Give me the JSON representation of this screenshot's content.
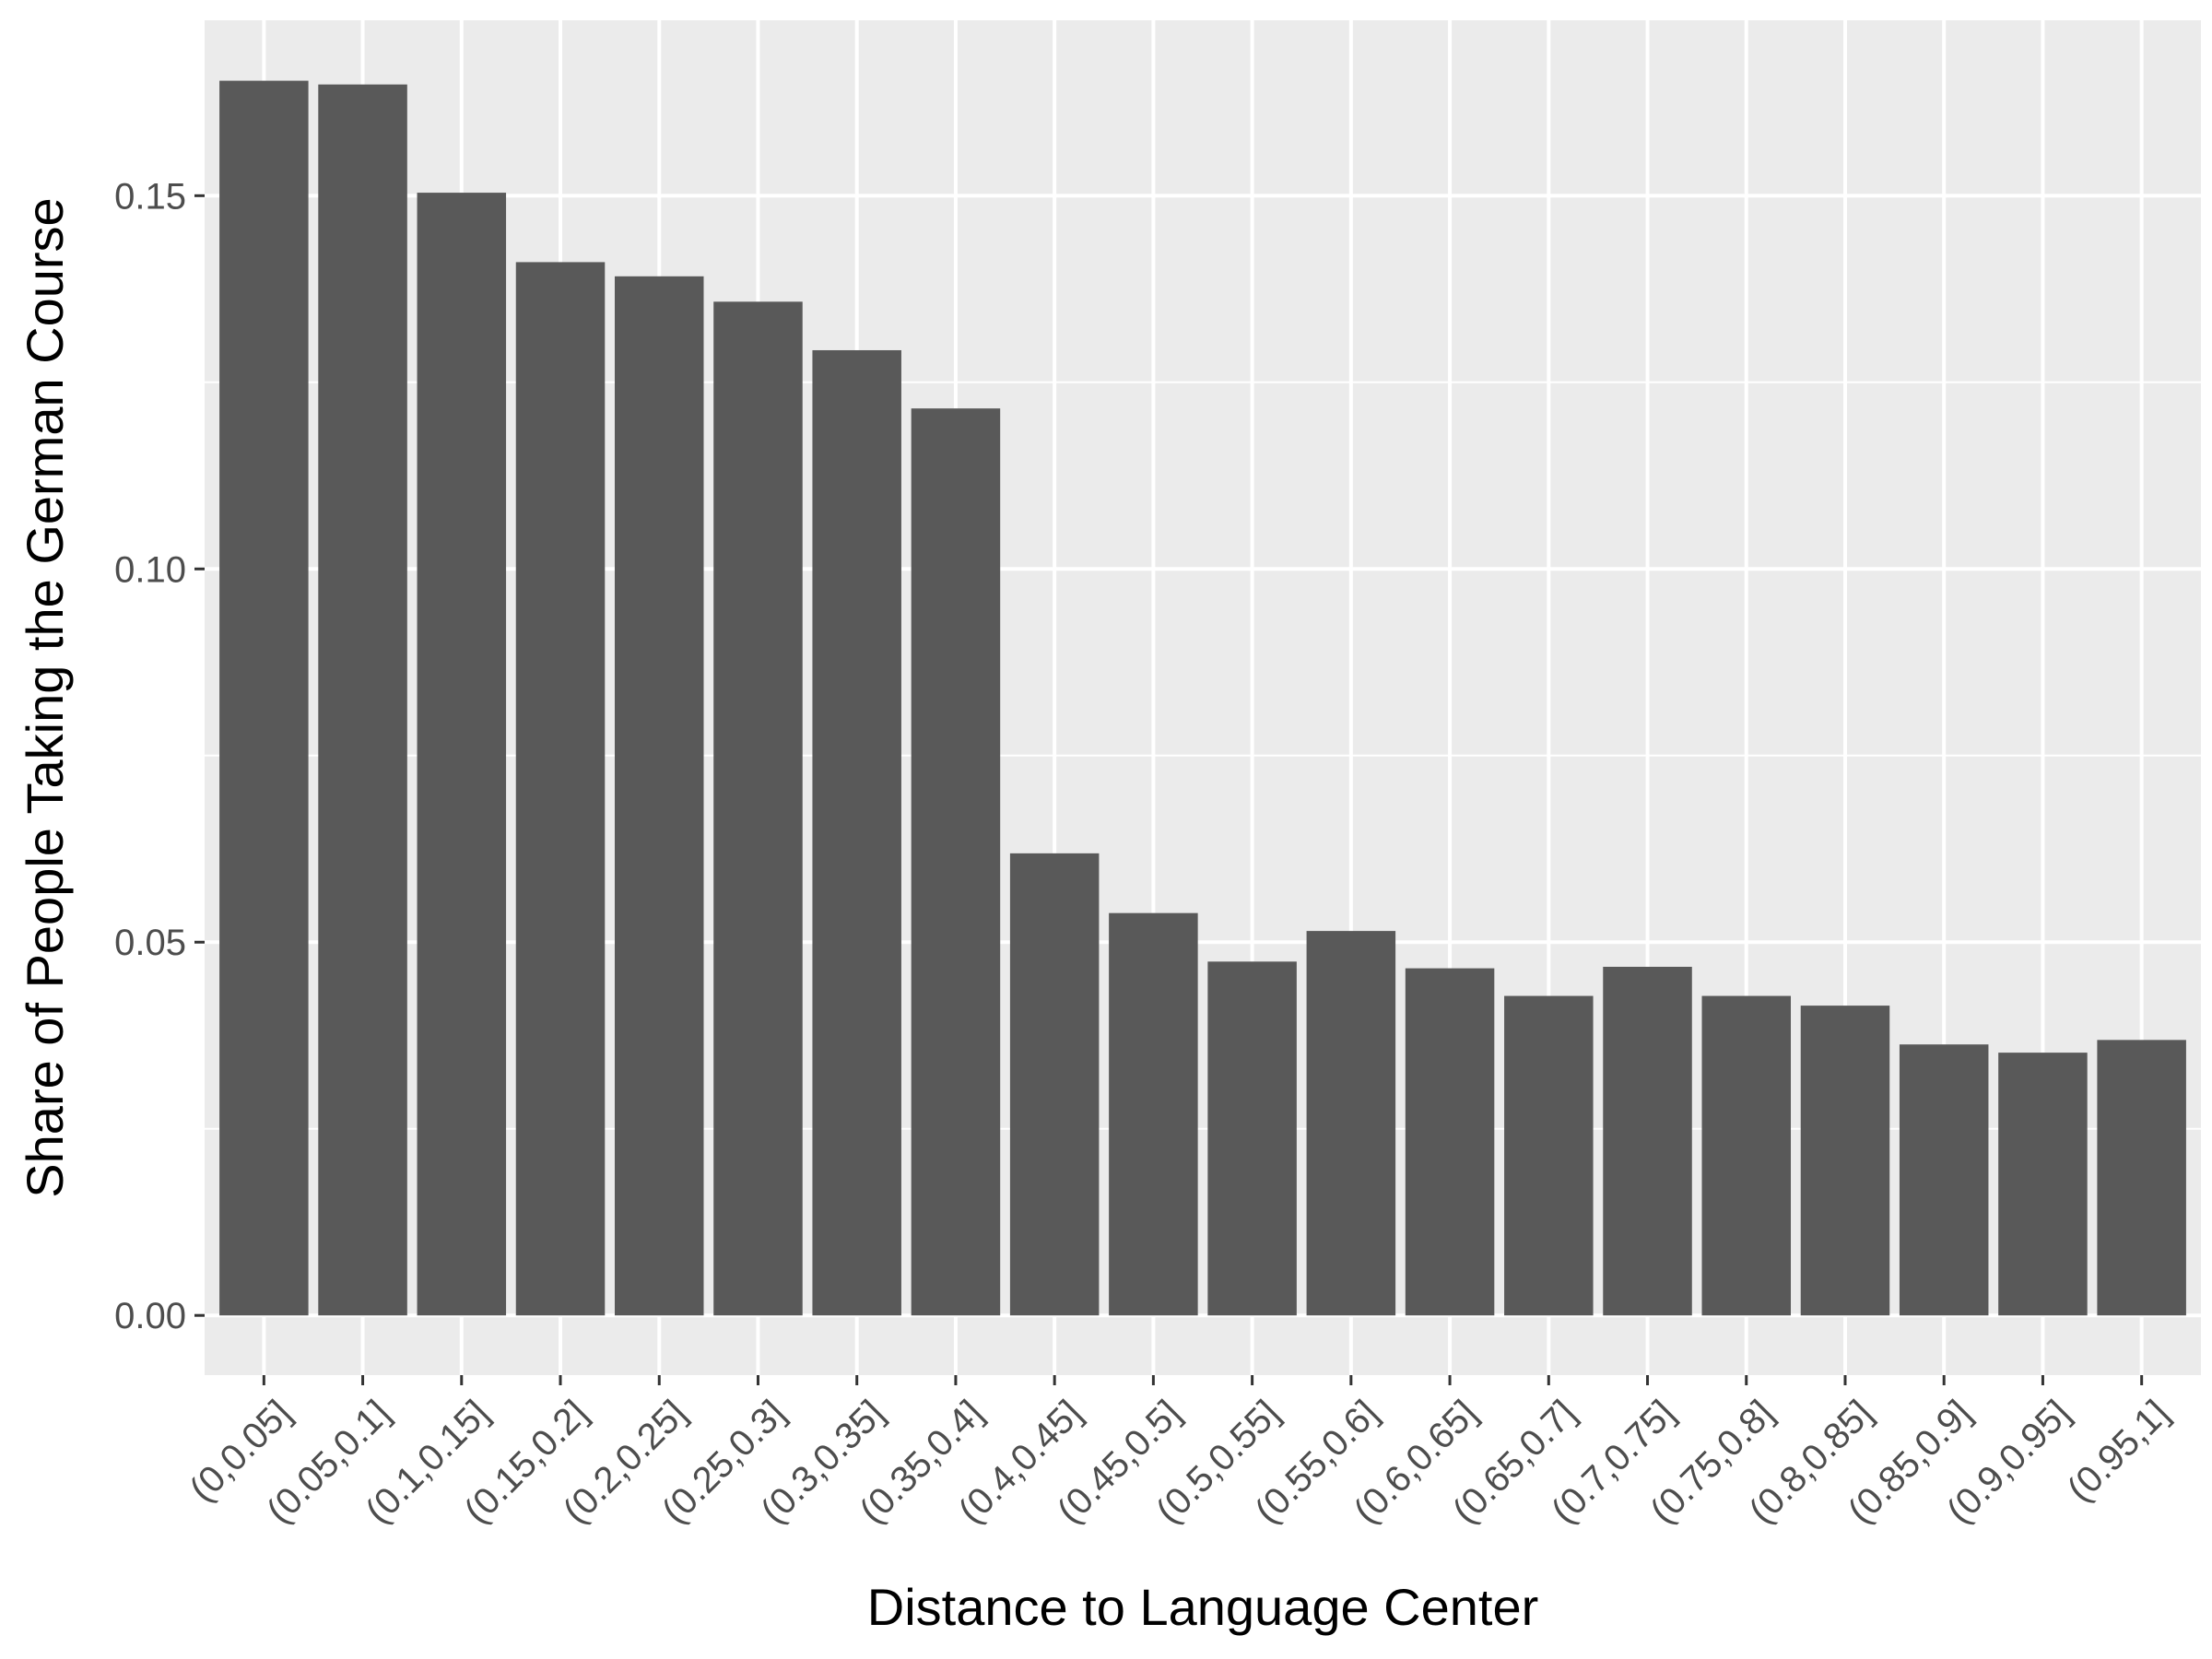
{
  "chart_data": {
    "type": "bar",
    "title": "",
    "xlabel": "Distance to Language Center",
    "ylabel": "Share of People Taking the German Course",
    "categories": [
      "(0,0.05]",
      "(0.05,0.1]",
      "(0.1,0.15]",
      "(0.15,0.2]",
      "(0.2,0.25]",
      "(0.25,0.3]",
      "(0.3,0.35]",
      "(0.35,0.4]",
      "(0.4,0.45]",
      "(0.45,0.5]",
      "(0.5,0.55]",
      "(0.55,0.6]",
      "(0.6,0.65]",
      "(0.65,0.7]",
      "(0.7,0.75]",
      "(0.75,0.8]",
      "(0.8,0.85]",
      "(0.85,0.9]",
      "(0.9,0.95]",
      "(0.95,1]"
    ],
    "values": [
      0.1654,
      0.1649,
      0.1504,
      0.1411,
      0.1392,
      0.1358,
      0.1293,
      0.1215,
      0.0619,
      0.0539,
      0.0474,
      0.0515,
      0.0465,
      0.0428,
      0.0467,
      0.0428,
      0.0415,
      0.0363,
      0.0352,
      0.0369
    ],
    "ylim": [
      -0.008,
      0.1735
    ],
    "yticks": [
      0.0,
      0.05,
      0.1,
      0.15
    ],
    "ytick_labels": [
      "0.00",
      "0.05",
      "0.10",
      "0.15"
    ],
    "grid": true,
    "panel_background": "#ebebeb",
    "grid_color": "#ffffff",
    "bar_color": "#595959"
  }
}
